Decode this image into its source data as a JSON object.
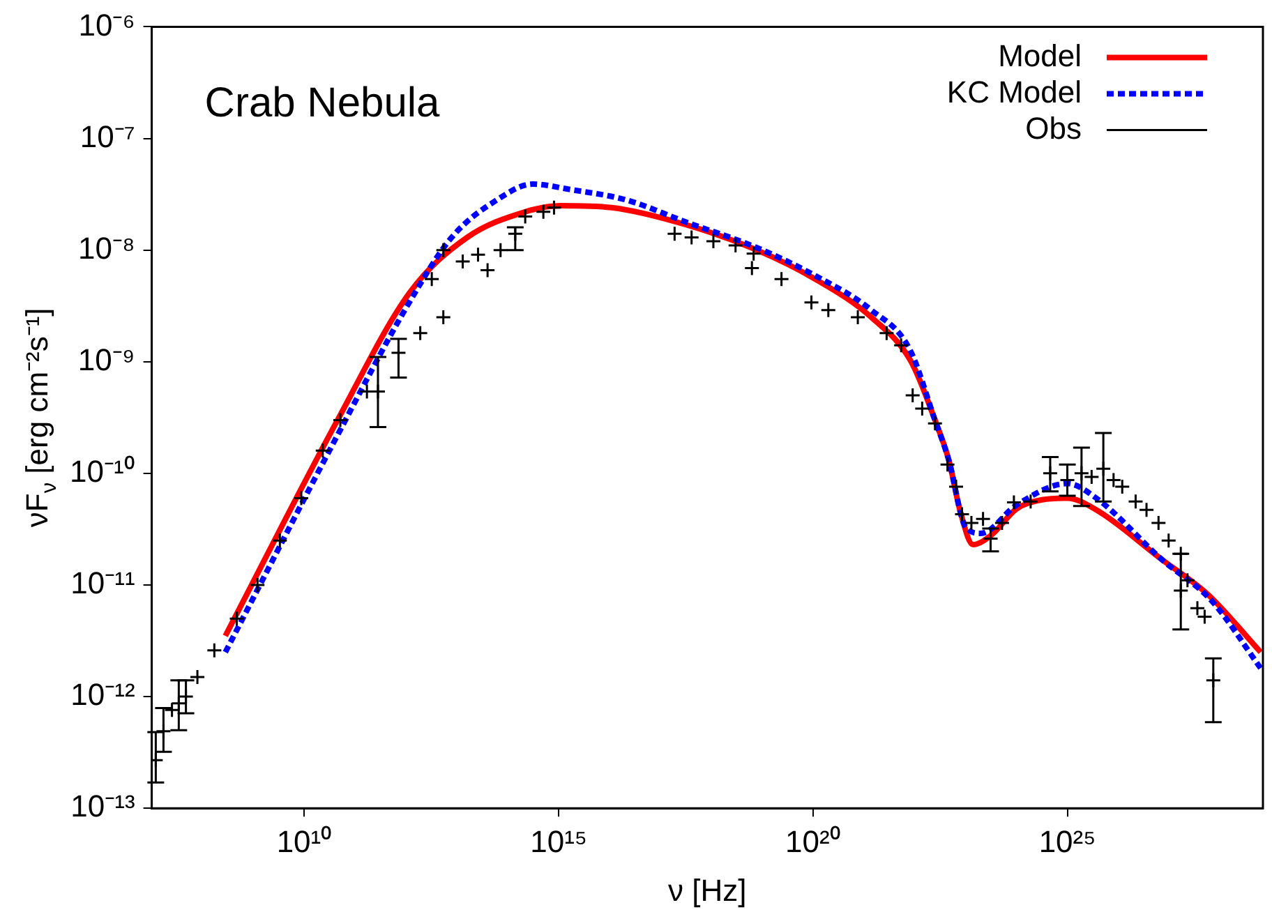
{
  "chart_data": {
    "type": "line",
    "title": "Crab Nebula",
    "xlabel": "ν [Hz]",
    "ylabel": "νF$_{ν}$ [erg cm⁻²s⁻¹]",
    "log": "xy",
    "grid": false,
    "legend": "top right",
    "xlim": [
      10000000.0,
      7e+28
    ],
    "ylim": [
      1e-13,
      1e-06
    ],
    "xticks": [
      {
        "value": 10000000000.0,
        "label": "10¹⁰"
      },
      {
        "value": 1000000000000000.0,
        "label": "10¹⁵"
      },
      {
        "value": 1e+20,
        "label": "10²⁰"
      },
      {
        "value": 1e+25,
        "label": "10²⁵"
      }
    ],
    "yticks": [
      {
        "value": 1e-13,
        "label": "10⁻¹³"
      },
      {
        "value": 1e-12,
        "label": "10⁻¹²"
      },
      {
        "value": 1e-11,
        "label": "10⁻¹¹"
      },
      {
        "value": 1e-10,
        "label": "10⁻¹⁰"
      },
      {
        "value": 1e-09,
        "label": "10⁻⁹"
      },
      {
        "value": 1e-08,
        "label": "10⁻⁸"
      },
      {
        "value": 1e-07,
        "label": "10⁻⁷"
      },
      {
        "value": 1e-06,
        "label": "10⁻⁶"
      }
    ],
    "series": [
      {
        "name": "Model",
        "color": "#ff0000",
        "line_style": "solid",
        "marker": "none",
        "x": [
          280000000.0,
          45000000000.0,
          1200000000000.0,
          16000000000000.0,
          220000000000000.0,
          1100000000000000.0,
          1.1e+16,
          3e+17,
          7.9e+18,
          1.1e+20,
          1.4e+21,
          8.5e+21,
          2.5e+22,
          4.7e+22,
          7.9e+22,
          1.4e+23,
          3.2e+23,
          1e+24,
          3.2e+24,
          1e+25,
          3.2e+25,
          7.1e+26,
          6e+27,
          6.3e+28
        ],
        "values": [
          3.5e-12,
          3e-10,
          4.2e-09,
          1.3e-08,
          2.2e-08,
          2.5e-08,
          2.4e-08,
          1.7e-08,
          1e-08,
          5.5e-09,
          2.5e-09,
          1e-09,
          3e-10,
          1.3e-10,
          4.5e-11,
          2.3e-11,
          2.8e-11,
          4.8e-11,
          5.8e-11,
          6e-11,
          4.9e-11,
          1.7e-11,
          8.1e-12,
          2.5e-12
        ]
      },
      {
        "name": "KC Model",
        "color": "#0000ff",
        "line_style": "dotted",
        "marker": "none",
        "x": [
          280000000.0,
          45000000000.0,
          1200000000000.0,
          7900000000000.0,
          60000000000000.0,
          310000000000000.0,
          1600000000000000.0,
          2.2e+16,
          3e+17,
          7.9e+18,
          1.1e+20,
          1.4e+21,
          7.9e+21,
          2.5e+22,
          4.7e+22,
          1e+23,
          2e+23,
          1e+24,
          1e+25,
          3.7e+25,
          7.1e+26,
          6.9e+27,
          6.3e+28
        ],
        "values": [
          2.5e-12,
          2.2e-10,
          3.5e-09,
          1.3e-08,
          2.8e-08,
          3.9e-08,
          3.5e-08,
          2.8e-08,
          1.8e-08,
          1.05e-08,
          5.9e-09,
          2.9e-09,
          1.3e-09,
          3e-10,
          1.3e-10,
          3.3e-11,
          2.9e-11,
          5.2e-11,
          8.1e-11,
          6e-11,
          1.7e-11,
          7.2e-12,
          1.8e-12
        ]
      },
      {
        "name": "Obs",
        "type": "scatter",
        "color": "#000000",
        "marker": "cross",
        "x": [
          12000000.0,
          17000000.0,
          25000000.0,
          34000000.0,
          47000000.0,
          79000000.0,
          170000000.0,
          470000000.0,
          1200000000.0,
          3300000000.0,
          8700000000.0,
          23000000000.0,
          51000000000.0,
          170000000000.0,
          280000000000.0,
          710000000000.0,
          1900000000000.0,
          5400000000000.0,
          3200000000000.0,
          5400000000000.0,
          13000000000000.0,
          26000000000000.0,
          40000000000000.0,
          72000000000000.0,
          140000000000000.0,
          220000000000000.0,
          500000000000000.0,
          810000000000000.0,
          1.9e+17,
          4.1e+17,
          1.1e+18,
          3e+18,
          6.8e+18,
          6.3e+18,
          2.4e+19,
          9.3e+19,
          2e+20,
          7.6e+20,
          2.8e+21,
          5.4e+21,
          9.1e+21,
          1.4e+22,
          2.5e+22,
          4.4e+22,
          6.5e+22,
          8.5e+22,
          1.3e+23,
          2.2e+23,
          3.1e+23,
          5.2e+23,
          8.9e+23,
          1.9e+24,
          4.6e+24,
          1e+25,
          1.9e+25,
          3e+25,
          5.1e+25,
          8.1e+25,
          1.2e+26,
          2.2e+26,
          3.6e+26,
          6.2e+26,
          9.8e+26,
          1.7e+27,
          1.7e+27,
          2.3e+27,
          3.6e+27,
          5e+27,
          7.4e+27
        ],
        "values": [
          2.7e-13,
          4.9e-13,
          7.6e-13,
          8.7e-13,
          1e-12,
          1.5e-12,
          2.6e-12,
          5e-12,
          1e-11,
          2.5e-11,
          6e-11,
          1.6e-10,
          3e-10,
          5.4e-10,
          5.4e-10,
          1.2e-09,
          1.8e-09,
          2.5e-09,
          5.5e-09,
          1e-08,
          7.9e-09,
          9.1e-09,
          6.6e-09,
          1e-08,
          1.4e-08,
          2e-08,
          2.2e-08,
          2.4e-08,
          1.4e-08,
          1.3e-08,
          1.2e-08,
          1.1e-08,
          9.3e-09,
          6.9e-09,
          5.5e-09,
          3.4e-09,
          2.9e-09,
          2.5e-09,
          1.8e-09,
          1.4e-09,
          5e-10,
          3.8e-10,
          2.8e-10,
          1.2e-10,
          7.6e-11,
          4.3e-11,
          3.6e-11,
          3.9e-11,
          2.6e-11,
          3.6e-11,
          5.5e-11,
          5.6e-11,
          1e-10,
          8.7e-11,
          1e-10,
          9.3e-11,
          1.1e-10,
          8.7e-11,
          7.6e-11,
          5.6e-11,
          4.7e-11,
          3.6e-11,
          2.5e-11,
          1.9e-11,
          8.9e-12,
          1.1e-11,
          6.2e-12,
          5.2e-12,
          1.4e-12
        ],
        "errors": [
          [
            1.7e-13,
            4.8e-13
          ],
          [
            3.2e-13,
            7.9e-13
          ],
          null,
          [
            5e-13,
            1.4e-12
          ],
          [
            7.1e-13,
            1.4e-12
          ],
          null,
          null,
          null,
          null,
          null,
          null,
          null,
          null,
          null,
          [
            2.6e-10,
            1.1e-09
          ],
          [
            7.2e-10,
            1.6e-09
          ],
          null,
          null,
          null,
          null,
          null,
          null,
          null,
          null,
          [
            1e-08,
            1.6e-08
          ],
          null,
          null,
          null,
          null,
          null,
          null,
          null,
          null,
          null,
          null,
          null,
          null,
          null,
          null,
          null,
          null,
          null,
          null,
          null,
          null,
          null,
          null,
          null,
          [
            2e-11,
            3.2e-11
          ],
          null,
          null,
          null,
          [
            6.9e-11,
            1.4e-10
          ],
          [
            6.3e-11,
            1.2e-10
          ],
          [
            5.1e-11,
            1.7e-10
          ],
          null,
          [
            5.6e-11,
            2.3e-10
          ],
          null,
          null,
          null,
          null,
          null,
          null,
          null,
          [
            4e-12,
            1.9e-11
          ],
          null,
          null,
          null,
          [
            5.9e-13,
            2.2e-12
          ]
        ]
      }
    ]
  }
}
